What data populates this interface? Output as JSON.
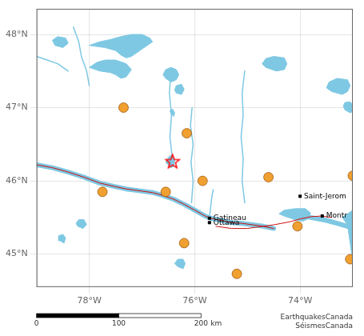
{
  "chart_data": {
    "type": "scatter",
    "xlim": [
      -79.0,
      -73.0
    ],
    "ylim": [
      44.55,
      48.35
    ],
    "xticks": [
      {
        "value": -78,
        "label": "78°W"
      },
      {
        "value": -76,
        "label": "76°W"
      },
      {
        "value": -74,
        "label": "74°W"
      }
    ],
    "yticks": [
      {
        "value": 45,
        "label": "45°N"
      },
      {
        "value": 46,
        "label": "46°N"
      },
      {
        "value": 47,
        "label": "47°N"
      },
      {
        "value": 48,
        "label": "48°N"
      }
    ],
    "grid": true,
    "series": [
      {
        "type": "line",
        "line_style": "thick",
        "color": "#7ec8e3",
        "x": [
          -79.0,
          -78.7,
          -78.4,
          -78.1,
          -77.8,
          -77.5,
          -77.3,
          -77.0,
          -76.8,
          -76.6,
          -76.4,
          -76.2,
          -76.0,
          -75.8,
          -75.7,
          -75.5,
          -75.3,
          -75.1,
          -74.9,
          -74.7,
          -74.5
        ],
        "values": [
          46.22,
          46.18,
          46.12,
          46.05,
          45.97,
          45.92,
          45.89,
          45.86,
          45.84,
          45.8,
          45.75,
          45.68,
          45.6,
          45.52,
          45.49,
          45.46,
          45.43,
          45.42,
          45.4,
          45.38,
          45.35
        ]
      },
      {
        "type": "line",
        "line_style": "thick",
        "color": "#7ec8e3",
        "x": [
          -74.2,
          -74.0,
          -73.8,
          -73.5,
          -73.3,
          -73.1,
          -73.0
        ],
        "values": [
          45.55,
          45.53,
          45.5,
          45.46,
          45.42,
          45.38,
          45.34
        ]
      },
      {
        "type": "area",
        "color": "#7ec8e3",
        "x": [
          -74.3,
          -74.1,
          -73.95,
          -73.85,
          -73.8,
          -73.9,
          -74.1,
          -74.3,
          -74.4,
          -74.3
        ],
        "values": [
          45.52,
          45.47,
          45.45,
          45.48,
          45.56,
          45.62,
          45.62,
          45.6,
          45.55,
          45.52
        ]
      },
      {
        "type": "line",
        "line_style": "solid",
        "color": "#7ec8e3",
        "x": [
          -75.05,
          -75.1,
          -75.08,
          -75.12,
          -75.08,
          -75.1,
          -75.05
        ],
        "values": [
          47.5,
          47.2,
          46.9,
          46.6,
          46.3,
          46.0,
          45.7
        ]
      },
      {
        "type": "line",
        "line_style": "solid",
        "color": "#7ec8e3",
        "x": [
          -76.05,
          -76.08,
          -76.03,
          -76.07,
          -76.03,
          -76.06
        ],
        "values": [
          47.0,
          46.75,
          46.5,
          46.25,
          46.0,
          45.7
        ]
      },
      {
        "type": "line",
        "line_style": "solid",
        "color": "#7ec8e3",
        "x": [
          -76.45,
          -76.48,
          -76.44,
          -76.47,
          -76.43
        ],
        "values": [
          47.5,
          47.2,
          46.9,
          46.6,
          46.35
        ]
      },
      {
        "type": "line",
        "line_style": "solid",
        "color": "#7ec8e3",
        "x": [
          -78.3,
          -78.2,
          -78.15,
          -78.05,
          -78.0
        ],
        "values": [
          48.1,
          47.9,
          47.7,
          47.5,
          47.3
        ]
      },
      {
        "type": "area",
        "color": "#7ec8e3",
        "x": [
          -78.0,
          -77.7,
          -77.5,
          -77.4,
          -77.3,
          -77.2,
          -77.1,
          -77.0,
          -76.9,
          -76.8,
          -76.85,
          -77.0,
          -77.2,
          -77.4,
          -77.6,
          -77.8,
          -78.0
        ],
        "values": [
          47.85,
          47.82,
          47.78,
          47.72,
          47.68,
          47.7,
          47.75,
          47.8,
          47.85,
          47.9,
          47.95,
          48.0,
          48.0,
          47.97,
          47.93,
          47.9,
          47.85
        ]
      },
      {
        "type": "area",
        "color": "#7ec8e3",
        "x": [
          -78.0,
          -77.8,
          -77.6,
          -77.5,
          -77.4,
          -77.3,
          -77.2,
          -77.3,
          -77.5,
          -77.7,
          -77.85,
          -78.0
        ],
        "values": [
          47.55,
          47.5,
          47.48,
          47.45,
          47.4,
          47.42,
          47.52,
          47.6,
          47.65,
          47.65,
          47.62,
          47.55
        ]
      },
      {
        "type": "area",
        "color": "#7ec8e3",
        "x": [
          -78.65,
          -78.5,
          -78.4,
          -78.45,
          -78.6,
          -78.7,
          -78.65
        ],
        "values": [
          47.85,
          47.82,
          47.88,
          47.95,
          47.97,
          47.92,
          47.85
        ]
      },
      {
        "type": "line",
        "line_style": "solid",
        "color": "#7ec8e3",
        "x": [
          -79.0,
          -78.8,
          -78.6,
          -78.4
        ],
        "values": [
          47.7,
          47.65,
          47.6,
          47.5
        ]
      },
      {
        "type": "area",
        "color": "#7ec8e3",
        "x": [
          -76.55,
          -76.45,
          -76.35,
          -76.3,
          -76.35,
          -76.45,
          -76.55,
          -76.6,
          -76.55
        ],
        "values": [
          47.4,
          47.35,
          47.38,
          47.45,
          47.52,
          47.55,
          47.52,
          47.45,
          47.4
        ]
      },
      {
        "type": "area",
        "color": "#7ec8e3",
        "x": [
          -76.35,
          -76.25,
          -76.2,
          -76.25,
          -76.35,
          -76.38,
          -76.35
        ],
        "values": [
          47.2,
          47.18,
          47.25,
          47.32,
          47.3,
          47.24,
          47.2
        ]
      },
      {
        "type": "area",
        "color": "#7ec8e3",
        "x": [
          -76.45,
          -76.4,
          -76.38,
          -76.42,
          -76.47,
          -76.45
        ],
        "values": [
          46.92,
          46.88,
          46.93,
          46.98,
          46.96,
          46.92
        ]
      },
      {
        "type": "area",
        "color": "#7ec8e3",
        "x": [
          -74.65,
          -74.45,
          -74.3,
          -74.25,
          -74.3,
          -74.5,
          -74.65,
          -74.72,
          -74.65
        ],
        "values": [
          47.55,
          47.5,
          47.52,
          47.6,
          47.68,
          47.7,
          47.67,
          47.6,
          47.55
        ]
      },
      {
        "type": "area",
        "color": "#7ec8e3",
        "x": [
          -73.4,
          -73.2,
          -73.1,
          -73.05,
          -73.1,
          -73.3,
          -73.45,
          -73.5,
          -73.4
        ],
        "values": [
          47.22,
          47.18,
          47.22,
          47.3,
          47.38,
          47.4,
          47.35,
          47.27,
          47.22
        ]
      },
      {
        "type": "area",
        "color": "#7ec8e3",
        "x": [
          -73.15,
          -73.05,
          -73.0,
          -73.0,
          -73.05,
          -73.15,
          -73.18,
          -73.15
        ],
        "values": [
          46.97,
          46.93,
          46.95,
          47.03,
          47.08,
          47.07,
          47.02,
          46.97
        ]
      },
      {
        "type": "area",
        "color": "#7ec8e3",
        "x": [
          -76.5,
          -76.45,
          -76.4,
          -76.38,
          -76.4,
          -76.45,
          -76.5,
          -76.55,
          -76.5
        ],
        "values": [
          46.22,
          46.18,
          46.2,
          46.27,
          46.32,
          46.35,
          46.32,
          46.25,
          46.22
        ]
      },
      {
        "type": "area",
        "color": "#7ec8e3",
        "x": [
          -76.32,
          -76.22,
          -76.18,
          -76.22,
          -76.32,
          -76.38,
          -76.32
        ],
        "values": [
          44.83,
          44.8,
          44.87,
          44.93,
          44.93,
          44.87,
          44.83
        ]
      },
      {
        "type": "area",
        "color": "#7ec8e3",
        "x": [
          -78.22,
          -78.12,
          -78.05,
          -78.1,
          -78.2,
          -78.25,
          -78.22
        ],
        "values": [
          45.38,
          45.35,
          45.4,
          45.47,
          45.47,
          45.42,
          45.38
        ]
      },
      {
        "type": "area",
        "color": "#7ec8e3",
        "x": [
          -78.55,
          -78.48,
          -78.45,
          -78.5,
          -78.58,
          -78.58
        ],
        "values": [
          45.18,
          45.15,
          45.22,
          45.27,
          45.25,
          45.18
        ]
      },
      {
        "type": "area",
        "color": "#7ec8e3",
        "x": [
          -73.2,
          -73.1,
          -73.0,
          -73.0,
          -73.2
        ],
        "values": [
          45.5,
          45.4,
          44.9,
          45.6,
          45.5
        ]
      },
      {
        "type": "line",
        "line_style": "solid",
        "color": "#7ec8e3",
        "x": [
          -75.72,
          -75.7,
          -75.68,
          -75.65
        ],
        "values": [
          45.49,
          45.62,
          45.75,
          45.88
        ]
      },
      {
        "type": "line",
        "line_style": "thin",
        "color": "#cc1111",
        "x": [
          -79.0,
          -78.7,
          -78.4,
          -78.1,
          -77.8,
          -77.5,
          -77.3,
          -77.0,
          -76.8,
          -76.6,
          -76.4,
          -76.2,
          -76.0,
          -75.8,
          -75.7,
          -75.5,
          -75.3,
          -75.1,
          -74.9,
          -74.7,
          -74.5
        ],
        "values": [
          46.22,
          46.18,
          46.12,
          46.05,
          45.97,
          45.92,
          45.89,
          45.86,
          45.84,
          45.8,
          45.75,
          45.68,
          45.6,
          45.52,
          45.49,
          45.46,
          45.43,
          45.42,
          45.4,
          45.38,
          45.35
        ]
      },
      {
        "type": "line",
        "line_style": "thin",
        "color": "#cc1111",
        "x": [
          -75.6,
          -75.3,
          -75.0,
          -74.8,
          -74.5,
          -74.2,
          -74.0,
          -73.8,
          -73.6,
          -73.4
        ],
        "values": [
          45.38,
          45.35,
          45.35,
          45.37,
          45.4,
          45.44,
          45.48,
          45.51,
          45.52,
          45.5
        ]
      },
      {
        "type": "scatter",
        "marker": "circle",
        "color": "#f0a030",
        "x": [
          -77.35,
          -76.15,
          -77.75,
          -76.55,
          -75.85,
          -74.6,
          -76.2,
          -75.2,
          -74.05,
          -73.05,
          -73.0
        ],
        "values": [
          47.0,
          46.65,
          45.85,
          45.85,
          46.0,
          46.05,
          45.15,
          44.73,
          45.38,
          44.93,
          46.07
        ]
      },
      {
        "type": "scatter",
        "marker": "star",
        "color": "red",
        "x": [
          -76.42
        ],
        "values": [
          46.27
        ]
      }
    ],
    "annotations": [
      {
        "text": "Gatineau",
        "x": -75.72,
        "y": 45.49
      },
      {
        "text": "Ottawa",
        "x": -75.72,
        "y": 45.43
      },
      {
        "text": "Saint-Jerom",
        "x": -74.0,
        "y": 45.79
      },
      {
        "text": "Montr",
        "x": -73.58,
        "y": 45.52
      }
    ],
    "scale_bar": {
      "ticks": [
        0,
        100,
        200
      ],
      "label": "km"
    },
    "source": "EarthquakesCanada\nSéismesCanada"
  }
}
